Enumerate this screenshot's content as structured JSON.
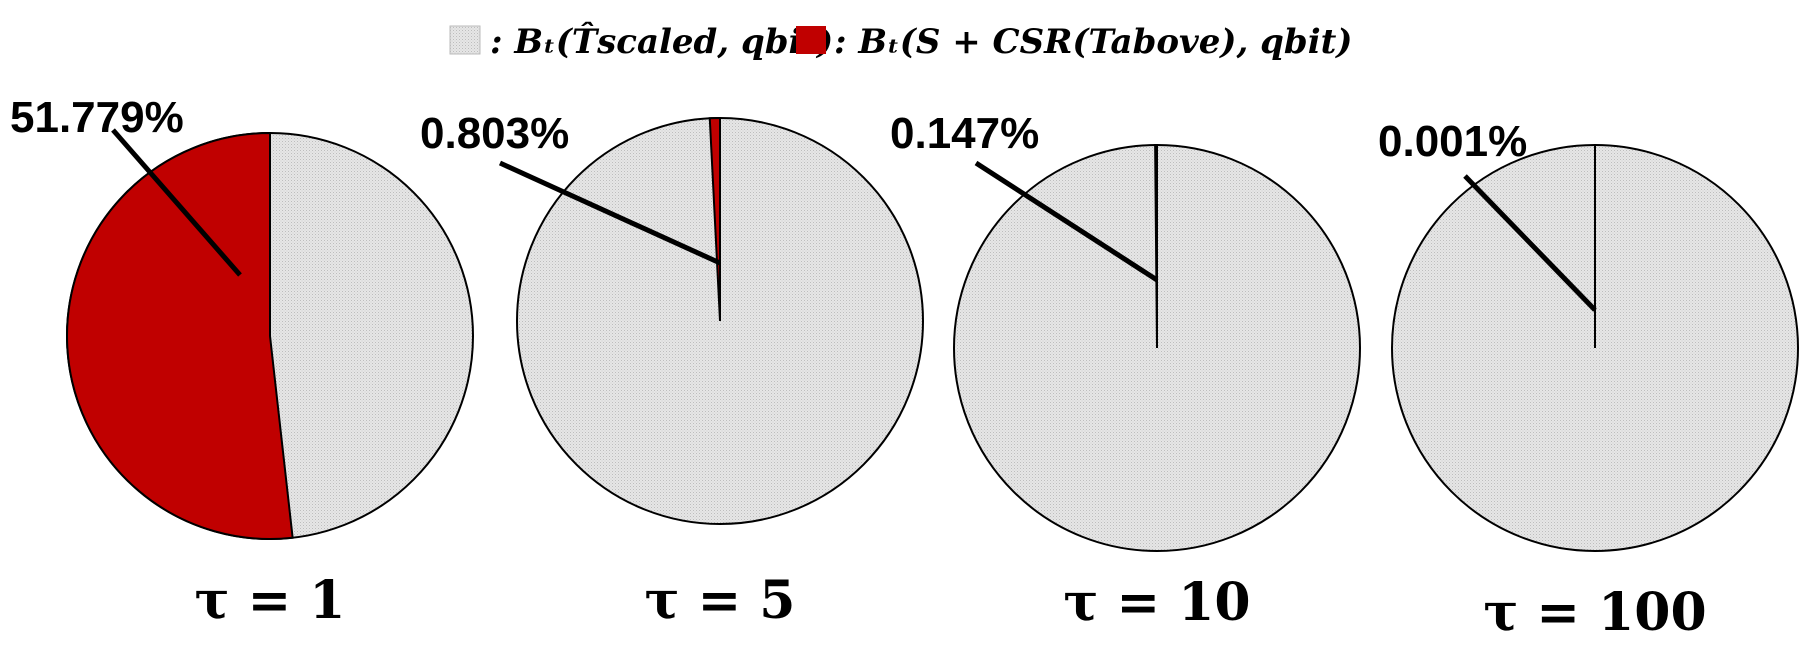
{
  "legend": {
    "items": [
      {
        "label": ": Bₜ(T̂scaled, qbit)",
        "swatch": "gray"
      },
      {
        "label": ": Bₜ(S + CSR(Tabove), qbit)",
        "swatch": "red"
      }
    ]
  },
  "colors": {
    "gray": "#e3e3e3",
    "red": "#c00000",
    "outline": "#000000"
  },
  "chart_data": [
    {
      "type": "pie",
      "title": "τ = 1",
      "series": [
        {
          "name": "Bₜ(T̂scaled, qbit)",
          "value": 48.221
        },
        {
          "name": "Bₜ(S + CSR(Tabove), qbit)",
          "value": 51.779
        }
      ],
      "label": "51.779%"
    },
    {
      "type": "pie",
      "title": "τ = 5",
      "series": [
        {
          "name": "Bₜ(T̂scaled, qbit)",
          "value": 99.197
        },
        {
          "name": "Bₜ(S + CSR(Tabove), qbit)",
          "value": 0.803
        }
      ],
      "label": "0.803%"
    },
    {
      "type": "pie",
      "title": "τ = 10",
      "series": [
        {
          "name": "Bₜ(T̂scaled, qbit)",
          "value": 99.853
        },
        {
          "name": "Bₜ(S + CSR(Tabove), qbit)",
          "value": 0.147
        }
      ],
      "label": "0.147%"
    },
    {
      "type": "pie",
      "title": "τ = 100",
      "series": [
        {
          "name": "Bₜ(T̂scaled, qbit)",
          "value": 99.999
        },
        {
          "name": "Bₜ(S + CSR(Tabove), qbit)",
          "value": 0.001
        }
      ],
      "label": "0.001%"
    }
  ]
}
